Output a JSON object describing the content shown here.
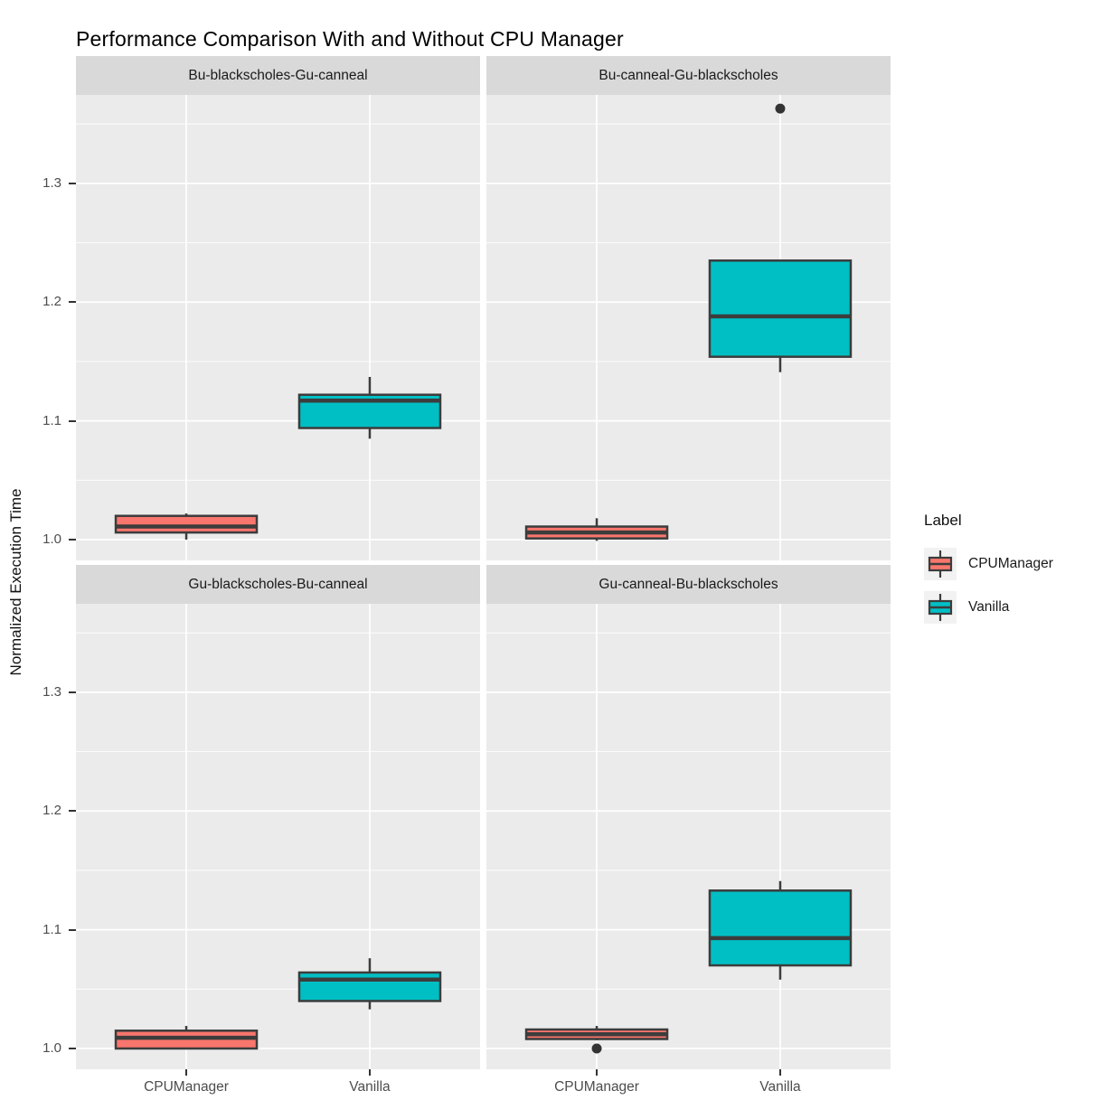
{
  "chart_data": {
    "type": "boxplot",
    "title": "Performance Comparison With and Without CPU Manager",
    "xlabel": "",
    "ylabel": "Normalized Execution Time",
    "categories": [
      "CPUManager",
      "Vanilla"
    ],
    "y_tick_labels": [
      "1.0",
      "1.1",
      "1.2",
      "1.3"
    ],
    "y_ticks": [
      1.0,
      1.1,
      1.2,
      1.3
    ],
    "y_minor_ticks": [
      1.05,
      1.15,
      1.25,
      1.35
    ],
    "ylim": [
      0.9825,
      1.3745
    ],
    "grid": "on",
    "panel_background": "#EBEBEB",
    "gridline_color": "#FFFFFF",
    "strip_background": "#D9D9D9",
    "box_outline_color": "#3C3C3C",
    "legend": {
      "title": "Label",
      "position": "right",
      "entries": [
        {
          "label": "CPUManager",
          "color": "#F8766D"
        },
        {
          "label": "Vanilla",
          "color": "#00BFC4"
        }
      ]
    },
    "facets": [
      {
        "label": "Bu-blackscholes-Gu-canneal",
        "boxes": [
          {
            "group": "CPUManager",
            "color": "#F8766D",
            "whisker_low": 1.0,
            "q1": 1.006,
            "median": 1.011,
            "q3": 1.02,
            "whisker_high": 1.022,
            "outliers": []
          },
          {
            "group": "Vanilla",
            "color": "#00BFC4",
            "whisker_low": 1.085,
            "q1": 1.094,
            "median": 1.117,
            "q3": 1.122,
            "whisker_high": 1.137,
            "outliers": []
          }
        ]
      },
      {
        "label": "Bu-canneal-Gu-blackscholes",
        "boxes": [
          {
            "group": "CPUManager",
            "color": "#F8766D",
            "whisker_low": 0.999,
            "q1": 1.001,
            "median": 1.006,
            "q3": 1.011,
            "whisker_high": 1.018,
            "outliers": []
          },
          {
            "group": "Vanilla",
            "color": "#00BFC4",
            "whisker_low": 1.141,
            "q1": 1.154,
            "median": 1.188,
            "q3": 1.235,
            "whisker_high": 1.235,
            "outliers": [
              1.363
            ]
          }
        ]
      },
      {
        "label": "Gu-blackscholes-Bu-canneal",
        "boxes": [
          {
            "group": "CPUManager",
            "color": "#F8766D",
            "whisker_low": 1.0,
            "q1": 1.0,
            "median": 1.009,
            "q3": 1.015,
            "whisker_high": 1.019,
            "outliers": []
          },
          {
            "group": "Vanilla",
            "color": "#00BFC4",
            "whisker_low": 1.033,
            "q1": 1.04,
            "median": 1.058,
            "q3": 1.064,
            "whisker_high": 1.076,
            "outliers": []
          }
        ]
      },
      {
        "label": "Gu-canneal-Bu-blackscholes",
        "boxes": [
          {
            "group": "CPUManager",
            "color": "#F8766D",
            "whisker_low": 1.007,
            "q1": 1.008,
            "median": 1.012,
            "q3": 1.016,
            "whisker_high": 1.019,
            "outliers": [
              1.0
            ]
          },
          {
            "group": "Vanilla",
            "color": "#00BFC4",
            "whisker_low": 1.058,
            "q1": 1.07,
            "median": 1.093,
            "q3": 1.133,
            "whisker_high": 1.141,
            "outliers": []
          }
        ]
      }
    ]
  }
}
